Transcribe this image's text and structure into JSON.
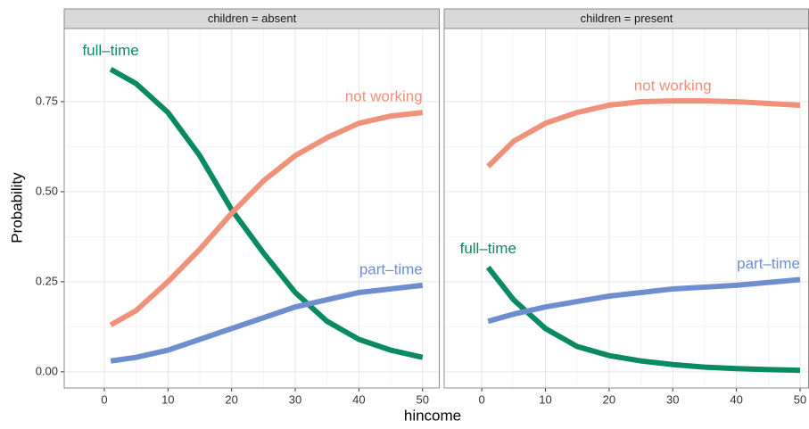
{
  "chart_data": [
    {
      "type": "line",
      "title": "children = absent",
      "xlabel": "hincome",
      "ylabel": "Probability",
      "x": [
        1,
        5,
        10,
        15,
        20,
        25,
        30,
        35,
        40,
        45,
        50
      ],
      "series": [
        {
          "name": "full–time",
          "color": "#0a8a62",
          "values": [
            0.84,
            0.8,
            0.72,
            0.6,
            0.45,
            0.33,
            0.22,
            0.14,
            0.09,
            0.06,
            0.04
          ]
        },
        {
          "name": "not working",
          "color": "#f0917a",
          "values": [
            0.13,
            0.17,
            0.25,
            0.34,
            0.44,
            0.53,
            0.6,
            0.65,
            0.69,
            0.71,
            0.72
          ]
        },
        {
          "name": "part–time",
          "color": "#6f8ecf",
          "values": [
            0.03,
            0.04,
            0.06,
            0.09,
            0.12,
            0.15,
            0.18,
            0.2,
            0.22,
            0.23,
            0.24
          ]
        }
      ],
      "xlim": [
        -6.3,
        52.7
      ],
      "ylim": [
        -0.045,
        0.953
      ],
      "xticks": [
        0,
        10,
        20,
        30,
        40,
        50
      ],
      "yticks": [
        {
          "value": 0,
          "label": "0.00"
        },
        {
          "value": 0.25,
          "label": "0.25"
        },
        {
          "value": 0.5,
          "label": "0.50"
        },
        {
          "value": 0.75,
          "label": "0.75"
        }
      ],
      "grid": true
    },
    {
      "type": "line",
      "title": "children = present",
      "x": [
        1,
        5,
        10,
        15,
        20,
        25,
        30,
        35,
        40,
        45,
        50
      ],
      "series": [
        {
          "name": "full–time",
          "color": "#0a8a62",
          "values": [
            0.29,
            0.2,
            0.12,
            0.07,
            0.045,
            0.03,
            0.02,
            0.013,
            0.009,
            0.006,
            0.004
          ]
        },
        {
          "name": "not working",
          "color": "#f0917a",
          "values": [
            0.57,
            0.64,
            0.69,
            0.72,
            0.74,
            0.75,
            0.752,
            0.752,
            0.75,
            0.745,
            0.74
          ]
        },
        {
          "name": "part–time",
          "color": "#6f8ecf",
          "values": [
            0.14,
            0.16,
            0.18,
            0.195,
            0.21,
            0.22,
            0.23,
            0.235,
            0.24,
            0.248,
            0.256
          ]
        }
      ],
      "xlim": [
        -5.9,
        51.4
      ],
      "ylim": [
        -0.045,
        0.953
      ],
      "xticks": [
        0,
        10,
        20,
        30,
        40,
        50
      ],
      "grid": true
    }
  ]
}
